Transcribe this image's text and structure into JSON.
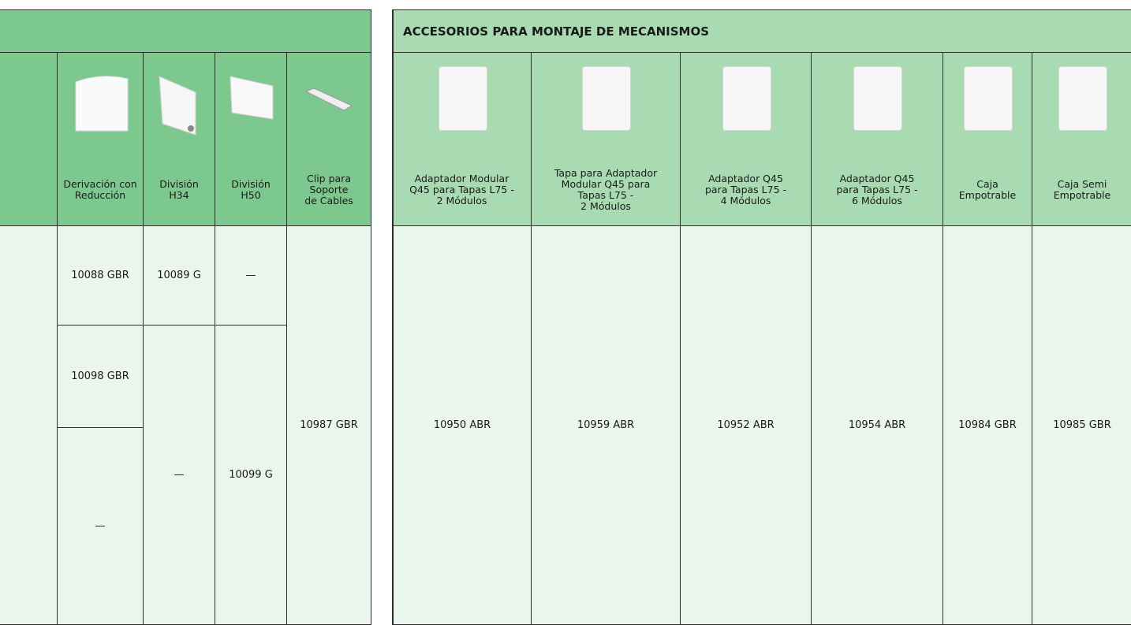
{
  "left_table": {
    "columns": [
      "Derivación con\nReducción",
      "División\nH34",
      "División\nH50",
      "Clip para\nSoporte\nde Cables"
    ],
    "rows": [
      [
        "10088 GBR",
        "10089 G",
        "—",
        "10987 GBR"
      ],
      [
        "10098 GBR",
        "—",
        "10099 G"
      ],
      [
        "—"
      ]
    ]
  },
  "right_table": {
    "title": "ACCESORIOS PARA MONTAJE DE MECANISMOS",
    "columns": [
      {
        "label": "Adaptador Modular\nQ45 para Tapas L75 -\n2 Módulos",
        "code": "10950 ABR"
      },
      {
        "label": "Tapa para Adaptador\nModular Q45 para\nTapas L75 -\n2 Módulos",
        "code": "10959 ABR"
      },
      {
        "label": "Adaptador Q45\npara Tapas L75 -\n4 Módulos",
        "code": "10952 ABR"
      },
      {
        "label": "Adaptador Q45\npara Tapas L75 -\n6 Módulos",
        "code": "10954 ABR"
      },
      {
        "label": "Caja\nEmpotrable",
        "code": "10984 GBR"
      },
      {
        "label": "Caja Semi\nEmpotrable",
        "code": "10985 GBR"
      }
    ]
  }
}
